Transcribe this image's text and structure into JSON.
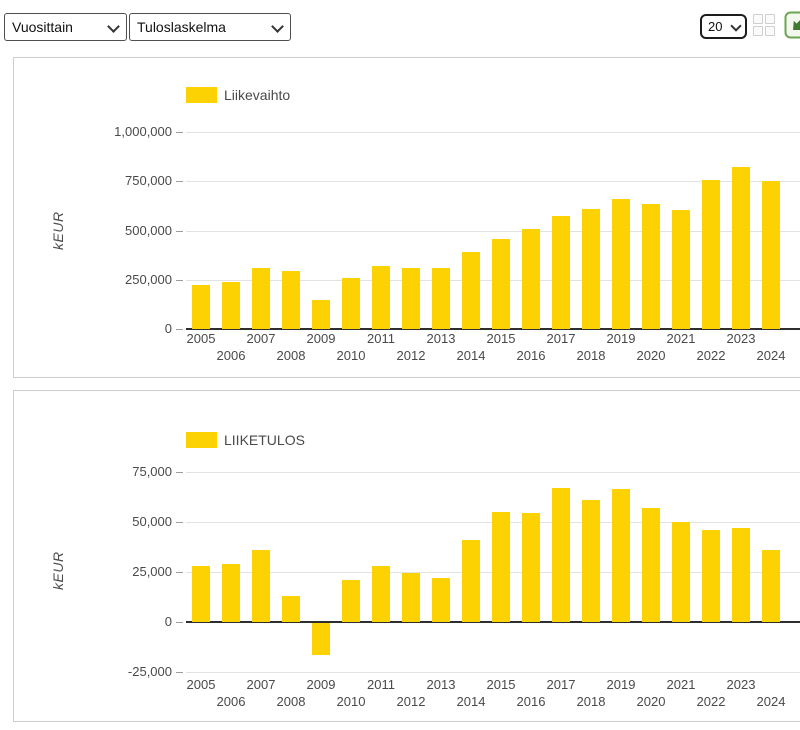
{
  "toolbar": {
    "period_select": {
      "value": "Vuosittain"
    },
    "report_select": {
      "value": "Tuloslaskelma"
    },
    "count_select": {
      "value": "20"
    },
    "icons": {
      "grid": "grid-view-icon",
      "excel": "export-excel-icon",
      "chevron": "chevron-down-icon"
    }
  },
  "colors": {
    "bar": "#FCD202",
    "gridline": "#e3e3e3",
    "axis": "#2e2e2e",
    "text": "#4a4a4a",
    "panel_border": "#cccccc",
    "excel_green": "#5f9e4c"
  },
  "chart_data": [
    {
      "type": "bar",
      "legend": "Liikevaihto",
      "ylabel": "kEUR",
      "bar_color": "#FCD202",
      "categories": [
        "2005",
        "2006",
        "2007",
        "2008",
        "2009",
        "2010",
        "2011",
        "2012",
        "2013",
        "2014",
        "2015",
        "2016",
        "2017",
        "2018",
        "2019",
        "2020",
        "2021",
        "2022",
        "2023",
        "2024"
      ],
      "values": [
        225000,
        240000,
        310000,
        292000,
        146000,
        260000,
        322000,
        310000,
        310000,
        390000,
        455000,
        510000,
        572000,
        607000,
        660000,
        635000,
        605000,
        757000,
        822000,
        750000
      ],
      "yticks": [
        0,
        250000,
        500000,
        750000,
        1000000
      ],
      "ylim": [
        0,
        1070000
      ],
      "grid": true,
      "legend_position": "top",
      "xlabel": ""
    },
    {
      "type": "bar",
      "legend": "LIIKETULOS",
      "ylabel": "kEUR",
      "bar_color": "#FCD202",
      "categories": [
        "2005",
        "2006",
        "2007",
        "2008",
        "2009",
        "2010",
        "2011",
        "2012",
        "2013",
        "2014",
        "2015",
        "2016",
        "2017",
        "2018",
        "2019",
        "2020",
        "2021",
        "2022",
        "2023",
        "2024"
      ],
      "values": [
        28000,
        29000,
        36000,
        13000,
        -16000,
        21000,
        28000,
        24500,
        22000,
        41000,
        55000,
        54500,
        67000,
        61000,
        66500,
        57000,
        50000,
        46000,
        47000,
        36000
      ],
      "yticks": [
        -25000,
        0,
        25000,
        50000,
        75000
      ],
      "ylim": [
        -30000,
        80000
      ],
      "grid": true,
      "legend_position": "top",
      "xlabel": ""
    }
  ]
}
